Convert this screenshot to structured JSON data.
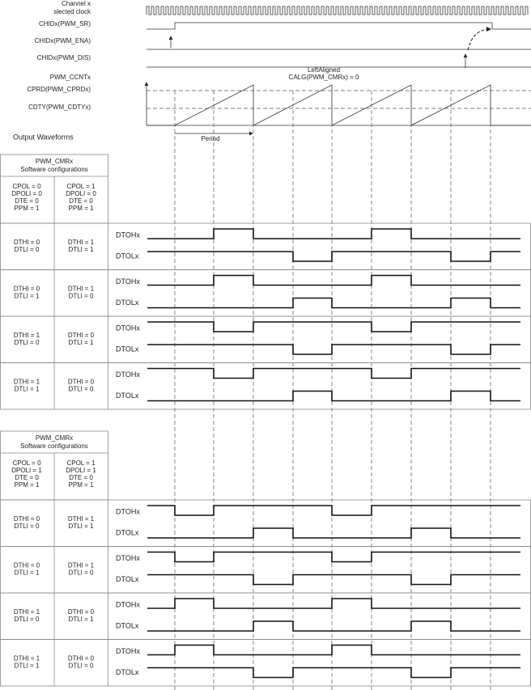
{
  "signals": {
    "clock": [
      "Channel x",
      "slected clock"
    ],
    "sr": "CHIDx(PWM_SR)",
    "ena": "CHIDx(PWM_ENA)",
    "dis": "CHIDx(PWM_DIS)",
    "ccnt": "PWM_CCNTx",
    "cprd": "CPRD(PWM_CPRDx)",
    "cdty": "CDTY(PWM_CDTYx)"
  },
  "mode": [
    "LeftAligned",
    "CALG(PWM_CMRx) = 0"
  ],
  "period": "Period",
  "output_title": "Output Waveforms",
  "tables": [
    {
      "header": [
        "PWM_CMRx",
        "Software configurations"
      ],
      "configs": [
        [
          "CPOL = 0",
          "DPOLI = 0",
          "DTE = 0",
          "PPM = 1"
        ],
        [
          "CPOL = 1",
          "DPOLI = 0",
          "DTE = 0",
          "PPM = 1"
        ]
      ],
      "rows": [
        {
          "cells": [
            [
              "DTHI = 0",
              "DTLI = 0"
            ],
            [
              "DTHI = 1",
              "DTLI = 1"
            ]
          ],
          "high_label": "DTOHx",
          "low_label": "DTOLx"
        },
        {
          "cells": [
            [
              "DTHI = 0",
              "DTLI = 1"
            ],
            [
              "DTHI = 1",
              "DTLI = 0"
            ]
          ],
          "high_label": "DTOHx",
          "low_label": "DTOLx"
        },
        {
          "cells": [
            [
              "DTHI = 1",
              "DTLI = 0"
            ],
            [
              "DTHI = 0",
              "DTLI = 1"
            ]
          ],
          "high_label": "DTOHx",
          "low_label": "DTOLx"
        },
        {
          "cells": [
            [
              "DTHI = 1",
              "DTLI = 1"
            ],
            [
              "DTHI = 0",
              "DTLI = 0"
            ]
          ],
          "high_label": "DTOHx",
          "low_label": "DTOLx"
        }
      ]
    },
    {
      "header": [
        "PWM_CMRx",
        "Software configurations"
      ],
      "configs": [
        [
          "CPOL = 0",
          "DPOLI = 1",
          "DTE = 0",
          "PPM = 1"
        ],
        [
          "CPOL = 1",
          "DPOLI = 1",
          "DTE = 0",
          "PPM = 1"
        ]
      ],
      "rows": [
        {
          "cells": [
            [
              "DTHI = 0",
              "DTLI = 0"
            ],
            [
              "DTHI = 1",
              "DTLI = 1"
            ]
          ],
          "high_label": "DTOHx",
          "low_label": "DTOLx"
        },
        {
          "cells": [
            [
              "DTHI = 0",
              "DTLI = 1"
            ],
            [
              "DTHI = 1",
              "DTLI = 0"
            ]
          ],
          "high_label": "DTOHx",
          "low_label": "DTOLx"
        },
        {
          "cells": [
            [
              "DTHI = 1",
              "DTLI = 0"
            ],
            [
              "DTHI = 0",
              "DTLI = 1"
            ]
          ],
          "high_label": "DTOHx",
          "low_label": "DTOLx"
        },
        {
          "cells": [
            [
              "DTHI = 1",
              "DTLI = 1"
            ],
            [
              "DTHI = 0",
              "DTLI = 0"
            ]
          ],
          "high_label": "DTOHx",
          "low_label": "DTOLx"
        }
      ]
    }
  ]
}
